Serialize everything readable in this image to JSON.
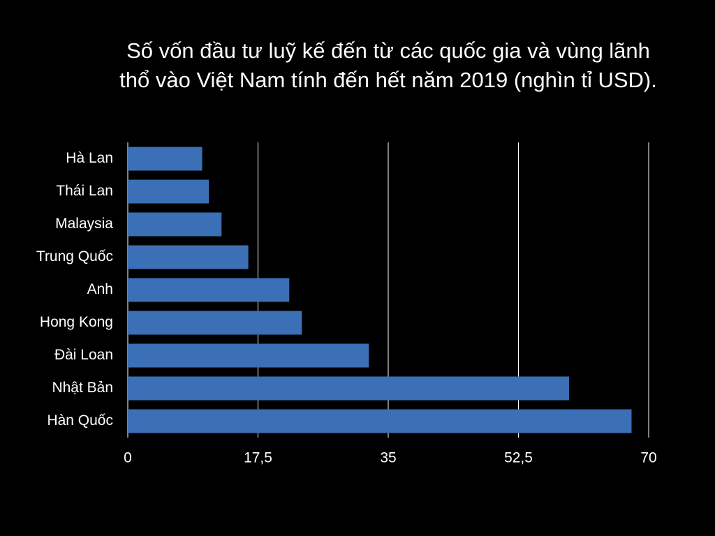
{
  "chart_data": {
    "type": "barh",
    "title": "Số vốn đầu tư luỹ kế đến từ các quốc gia và vùng lãnh thổ vào Việt Nam tính đến hết năm 2019 (nghìn tỉ USD).",
    "categories": [
      "Hà Lan",
      "Thái Lan",
      "Malaysia",
      "Trung Quốc",
      "Anh",
      "Hong Kong",
      "Đài Loan",
      "Nhật Bản",
      "Hàn Quốc"
    ],
    "values": [
      10.0,
      10.9,
      12.6,
      16.2,
      21.7,
      23.4,
      32.4,
      59.3,
      67.7
    ],
    "color": "#3b6fb6",
    "xlim": [
      0,
      70
    ],
    "xticks": [
      0,
      {
        "value": 17.5,
        "label": "17,5"
      },
      35,
      {
        "value": 52.5,
        "label": "52,5"
      },
      70
    ],
    "grid": true
  }
}
